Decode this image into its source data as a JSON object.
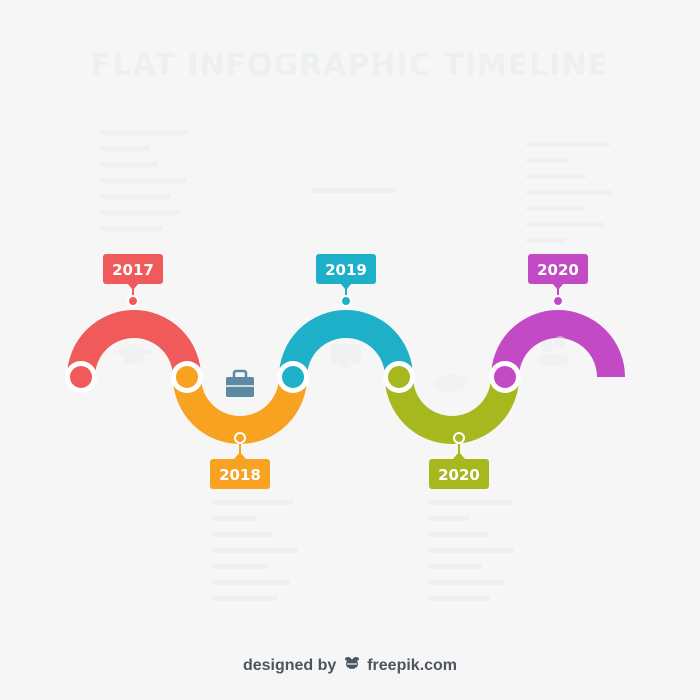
{
  "title": "FLAT INFOGRAPHIC TIMELINE",
  "colors": {
    "red": "#f05a5a",
    "orange": "#f7a221",
    "teal": "#1eb0c8",
    "olive": "#a6b81d",
    "purple": "#c24ac4",
    "briefcase": "#5b8aa2"
  },
  "years": {
    "y2017": "2017",
    "y2018": "2018",
    "y2019": "2019",
    "y2020a": "2020",
    "y2020b": "2020"
  },
  "footer": {
    "designed_by": "designed by",
    "brand": "freepik.com"
  }
}
